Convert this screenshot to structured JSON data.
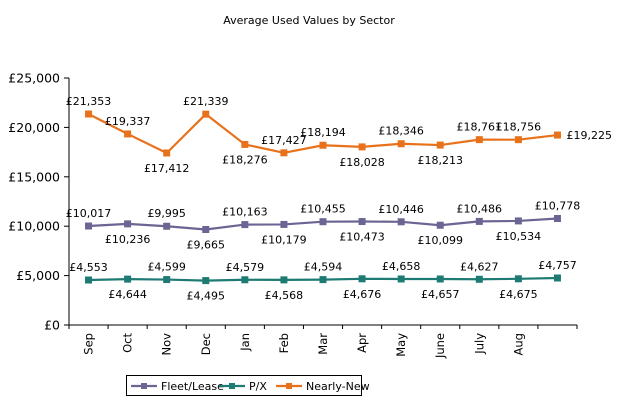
{
  "chart_data": {
    "type": "line",
    "title": "Average Used Values by Sector",
    "xlabel": "",
    "ylabel": "",
    "ylim": [
      0,
      25000
    ],
    "yticks": [
      0,
      5000,
      10000,
      15000,
      20000,
      25000
    ],
    "ytick_labels": [
      "£0",
      "£5,000",
      "£10,000",
      "£15,000",
      "£20,000",
      "£25,000"
    ],
    "categories": [
      "Sep",
      "Oct",
      "Nov",
      "Dec",
      "Jan",
      "Feb",
      "Mar",
      "Apr",
      "May",
      "June",
      "July",
      "Aug",
      ""
    ],
    "grid": false,
    "legend_position": "bottom",
    "series": [
      {
        "name": "Fleet/Lease",
        "color": "#6a6593",
        "values": [
          10017,
          10236,
          9995,
          9665,
          10163,
          10179,
          10455,
          10473,
          10446,
          10099,
          10486,
          10534,
          10778
        ],
        "labels": [
          "£10,017",
          "£10,236",
          "£9,995",
          "£9,665",
          "£10,163",
          "£10,179",
          "£10,455",
          "£10,473",
          "£10,446",
          "£10,099",
          "£10,486",
          "£10,534",
          "£10,778"
        ],
        "label_pos": [
          "above",
          "below",
          "above",
          "below",
          "above",
          "below",
          "above",
          "below",
          "above",
          "below",
          "above",
          "below",
          "above"
        ]
      },
      {
        "name": "P/X",
        "color": "#1e7b73",
        "values": [
          4553,
          4644,
          4599,
          4495,
          4579,
          4568,
          4594,
          4676,
          4658,
          4657,
          4627,
          4675,
          4757
        ],
        "labels": [
          "£4,553",
          "£4,644",
          "£4,599",
          "£4,495",
          "£4,579",
          "£4,568",
          "£4,594",
          "£4,676",
          "£4,658",
          "£4,657",
          "£4,627",
          "£4,675",
          "£4,757"
        ],
        "label_pos": [
          "above",
          "below",
          "above",
          "below",
          "above",
          "below",
          "above",
          "below",
          "above",
          "below",
          "above",
          "below",
          "above"
        ]
      },
      {
        "name": "Nearly-New",
        "color": "#e8721c",
        "values": [
          21353,
          19337,
          17412,
          21339,
          18276,
          17427,
          18194,
          18028,
          18346,
          18213,
          18761,
          18756,
          19225
        ],
        "labels": [
          "£21,353",
          "£19,337",
          "£17,412",
          "£21,339",
          "£18,276",
          "£17,427",
          "£18,194",
          "£18,028",
          "£18,346",
          "£18,213",
          "£18,761",
          "£18,756",
          "£19,225"
        ],
        "label_pos": [
          "above",
          "above",
          "below",
          "above",
          "below",
          "above",
          "above",
          "below",
          "above",
          "below",
          "above",
          "above",
          "right"
        ]
      }
    ]
  }
}
